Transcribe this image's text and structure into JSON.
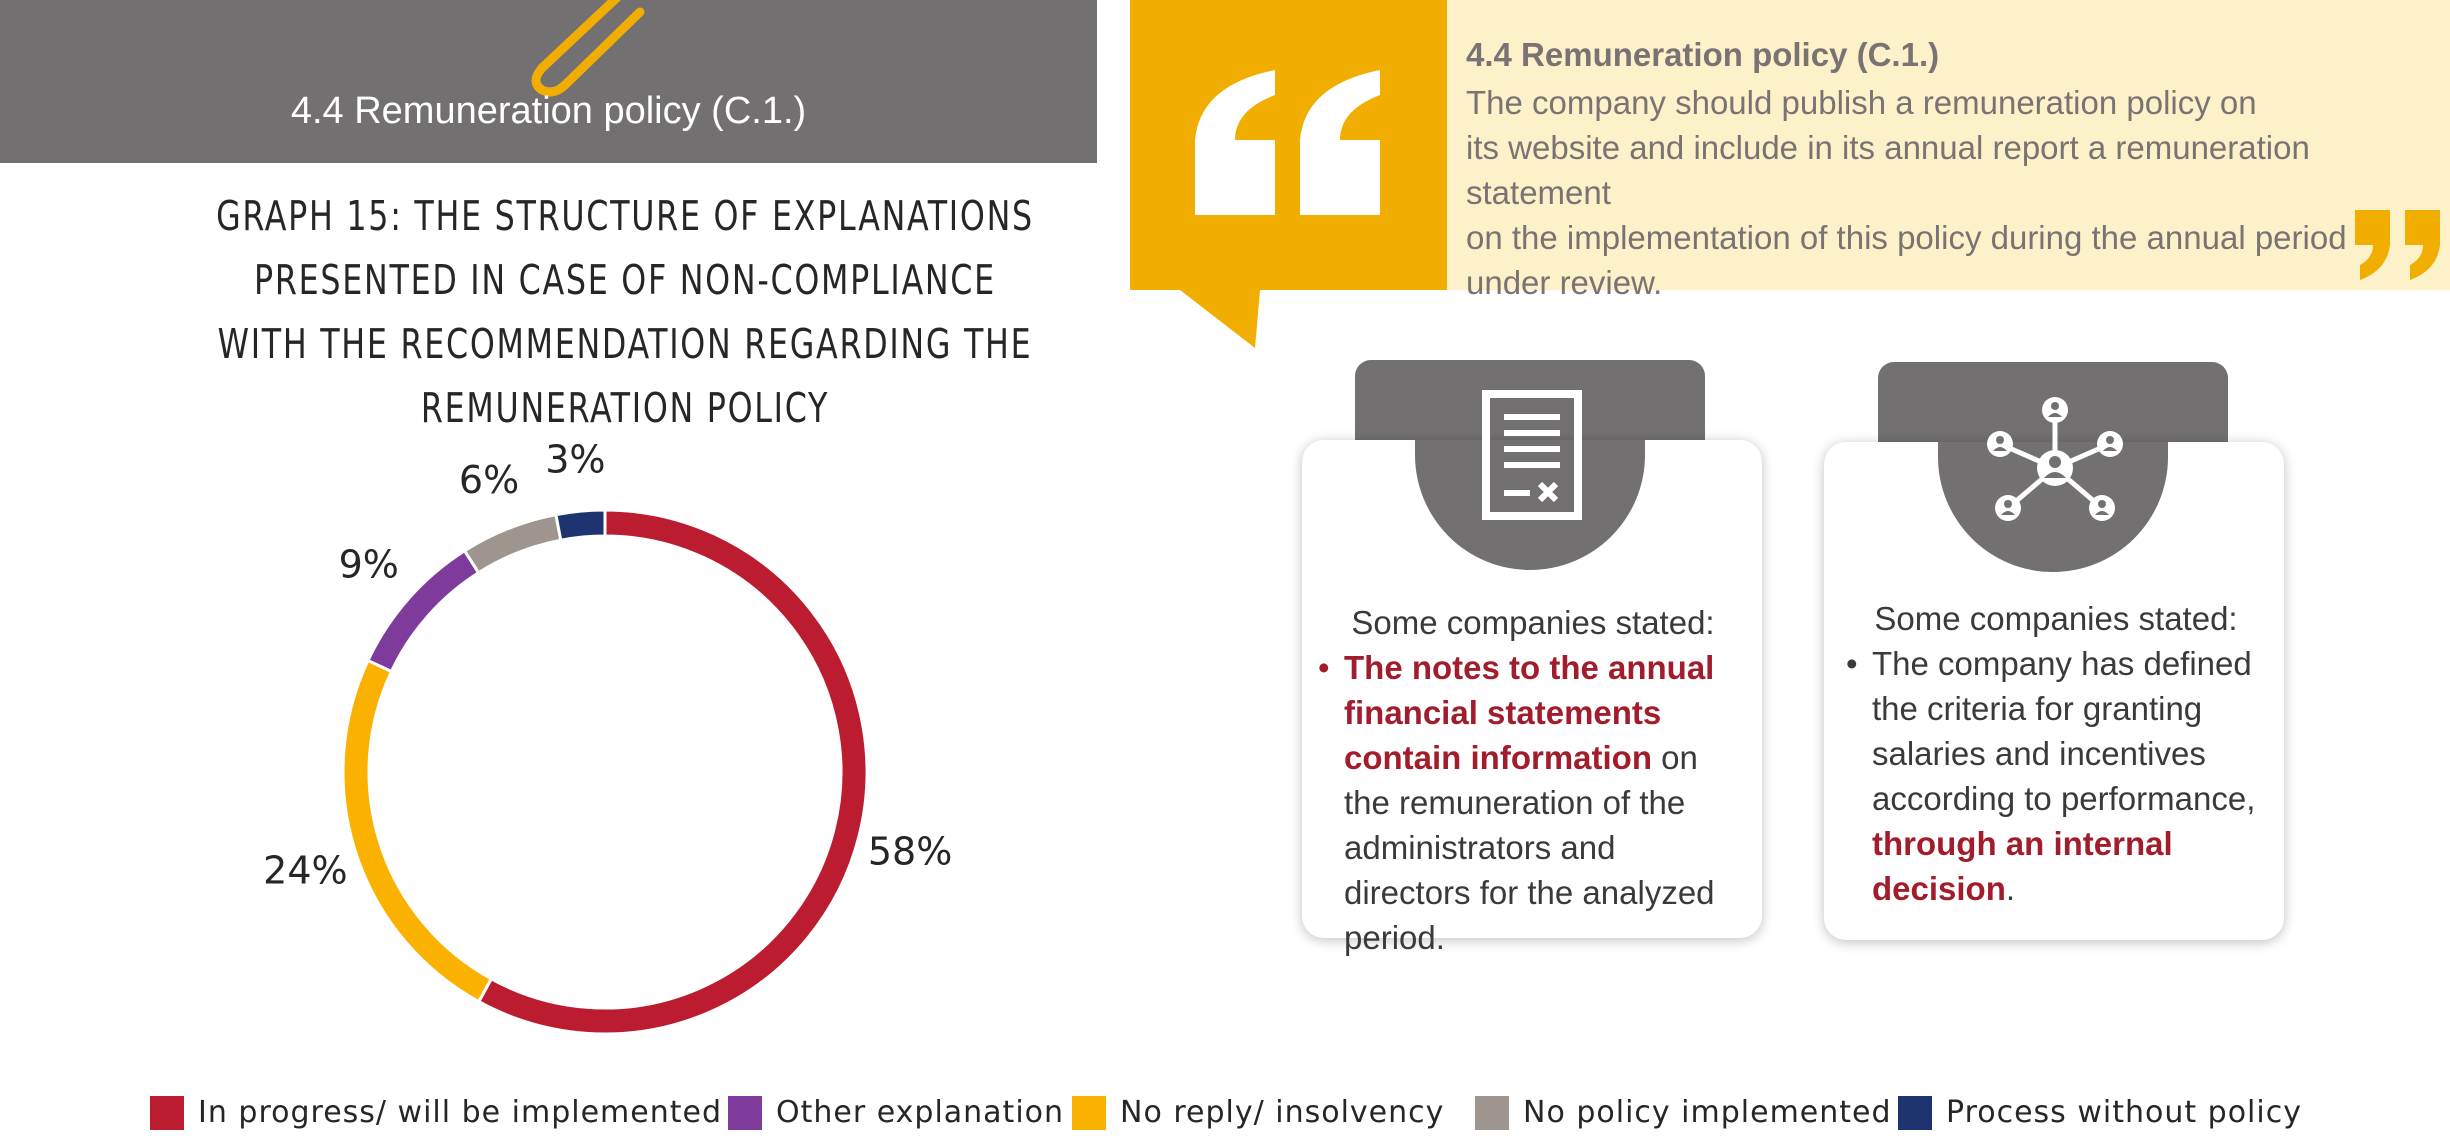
{
  "header": {
    "title": "4.4 Remuneration policy (C.1.)"
  },
  "graph": {
    "title_lines": [
      "GRAPH 15: THE STRUCTURE OF EXPLANATIONS",
      "PRESENTED IN CASE OF NON-COMPLIANCE",
      "WITH THE RECOMMENDATION REGARDING THE",
      "REMUNERATION POLICY"
    ]
  },
  "chart_data": {
    "type": "pie",
    "title": "GRAPH 15: THE STRUCTURE OF EXPLANATIONS PRESENTED IN CASE OF NON-COMPLIANCE WITH THE RECOMMENDATION REGARDING THE REMUNERATION POLICY",
    "donut": true,
    "legend_position": "bottom",
    "categories": [
      "In progress/ will be implemented",
      "No reply/ insolvency",
      "Other explanation",
      "No policy implemented",
      "Process without policy"
    ],
    "values": [
      58,
      24,
      9,
      6,
      3
    ],
    "labels": [
      "58%",
      "24%",
      "9%",
      "6%",
      "3%"
    ],
    "colors": [
      "#bc1c30",
      "#fbb100",
      "#7e3b9c",
      "#9d958e",
      "#1d3470"
    ]
  },
  "legend": [
    {
      "label": "In progress/ will be implemented",
      "color": "#bc1c30"
    },
    {
      "label": "Other explanation",
      "color": "#7e3b9c"
    },
    {
      "label": "No reply/ insolvency",
      "color": "#fbb100"
    },
    {
      "label": "No policy implemented",
      "color": "#9d958e"
    },
    {
      "label": "Process without policy",
      "color": "#1d3470"
    }
  ],
  "quote": {
    "heading": "4.4 Remuneration policy (C.1.)",
    "lines": [
      "The company should publish a remuneration policy on",
      "its website and include in its annual report a remuneration statement",
      "on the implementation of this policy during the annual period",
      "under review."
    ]
  },
  "card1": {
    "icon": "document-icon",
    "intro": "Some companies stated:",
    "bullet_highlight": "The notes to the annual financial statements contain information",
    "bullet_rest": " on the remuneration of the administrators and directors for the analyzed period."
  },
  "card2": {
    "icon": "network-icon",
    "intro": "Some companies stated:",
    "bullet_text": "The company has defined the criteria for granting salaries and incentives according to performance, ",
    "bullet_highlight": "through an internal decision",
    "bullet_end": "."
  },
  "colors": {
    "header_gray": "#727070",
    "gold": "#f2ae00",
    "cream": "#fdf1c9",
    "highlight_red": "#a21d2c"
  }
}
